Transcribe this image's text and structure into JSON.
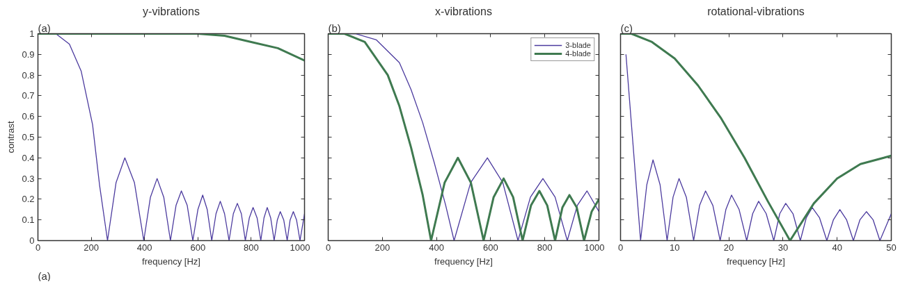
{
  "chart_data": [
    {
      "type": "line",
      "title": "y-vibrations",
      "xlabel": "frequency [Hz]",
      "ylabel": "contrast",
      "annotations": [
        "(a)",
        "(a)"
      ],
      "xlim": [
        0,
        1000
      ],
      "xticks": [
        0,
        200,
        400,
        600,
        800,
        1000
      ],
      "ylim": [
        0,
        1
      ],
      "yticks": [
        0,
        0.1,
        0.2,
        0.3,
        0.4,
        0.5,
        0.6,
        0.7,
        0.8,
        0.9,
        1
      ],
      "grid": false,
      "legend": false,
      "series": [
        {
          "color": "#4b3a9e",
          "x": [
            0,
            67,
            118,
            162,
            205,
            231,
            261,
            293,
            326,
            362,
            397,
            422,
            447,
            472,
            497,
            518,
            538,
            560,
            581,
            600,
            618,
            635,
            652,
            668,
            684,
            700,
            717,
            733,
            748,
            763,
            778,
            793,
            807,
            822,
            836,
            848,
            860,
            873,
            886,
            898,
            909,
            922,
            935,
            946,
            958,
            970,
            983,
            1000
          ],
          "values": [
            1,
            1,
            0.95,
            0.82,
            0.56,
            0.27,
            0,
            0.28,
            0.4,
            0.28,
            0,
            0.21,
            0.3,
            0.21,
            0,
            0.17,
            0.24,
            0.17,
            0,
            0.15,
            0.22,
            0.15,
            0,
            0.13,
            0.19,
            0.13,
            0,
            0.13,
            0.18,
            0.13,
            0,
            0.11,
            0.16,
            0.11,
            0,
            0.11,
            0.16,
            0.11,
            0,
            0.1,
            0.14,
            0.1,
            0,
            0.1,
            0.14,
            0.1,
            0,
            0.13
          ]
        },
        {
          "color": "#3f7a50",
          "x": [
            0,
            200,
            400,
            600,
            700,
            800,
            900,
            1000
          ],
          "values": [
            1,
            1,
            1,
            1,
            0.99,
            0.96,
            0.93,
            0.87
          ]
        }
      ]
    },
    {
      "type": "line",
      "title": "x-vibrations",
      "xlabel": "frequency [Hz]",
      "annotations": [
        "(b)"
      ],
      "xlim": [
        0,
        1000
      ],
      "xticks": [
        0,
        200,
        400,
        600,
        800,
        1000
      ],
      "ylim": [
        0,
        1
      ],
      "yticks": [
        0,
        0.1,
        0.2,
        0.3,
        0.4,
        0.5,
        0.6,
        0.7,
        0.8,
        0.9,
        1
      ],
      "tick_labels": "x",
      "grid": false,
      "legend": "top right",
      "series": [
        {
          "name": "3-blade",
          "color": "#4b3a9e",
          "x": [
            0,
            100,
            178,
            263,
            306,
            349,
            391,
            434,
            465,
            526,
            588,
            645,
            701,
            747,
            793,
            838,
            883,
            920,
            956,
            1000
          ],
          "values": [
            1,
            1,
            0.97,
            0.86,
            0.73,
            0.57,
            0.38,
            0.17,
            0,
            0.28,
            0.4,
            0.28,
            0,
            0.21,
            0.3,
            0.21,
            0,
            0.17,
            0.24,
            0.14
          ]
        },
        {
          "name": "4-blade",
          "color": "#3f7a50",
          "x": [
            0,
            60,
            135,
            220,
            263,
            306,
            349,
            380,
            430,
            479,
            527,
            574,
            611,
            648,
            683,
            718,
            749,
            780,
            809,
            838,
            865,
            891,
            918,
            945,
            973,
            1000
          ],
          "values": [
            1,
            1,
            0.96,
            0.8,
            0.65,
            0.45,
            0.22,
            0,
            0.28,
            0.4,
            0.28,
            0,
            0.21,
            0.3,
            0.21,
            0,
            0.17,
            0.24,
            0.17,
            0,
            0.16,
            0.22,
            0.16,
            0,
            0.14,
            0.2
          ]
        }
      ]
    },
    {
      "type": "line",
      "title": "rotational-vibrations",
      "xlabel": "frequency [Hz]",
      "annotations": [
        "(c)"
      ],
      "xlim": [
        0,
        50
      ],
      "xticks": [
        0,
        10,
        20,
        30,
        40,
        50
      ],
      "ylim": [
        0,
        1
      ],
      "yticks": [
        0,
        0.1,
        0.2,
        0.3,
        0.4,
        0.5,
        0.6,
        0.7,
        0.8,
        0.9,
        1
      ],
      "tick_labels": "x",
      "grid": false,
      "legend": false,
      "series": [
        {
          "color": "#4b3a9e",
          "x": [
            1.0,
            3.7,
            4.85,
            6.0,
            7.3,
            8.6,
            9.7,
            10.8,
            12.15,
            13.5,
            14.6,
            15.7,
            17.05,
            18.4,
            19.45,
            20.5,
            21.9,
            23.3,
            24.4,
            25.5,
            26.9,
            28.3,
            29.4,
            30.5,
            31.85,
            33.2,
            34.3,
            35.4,
            36.75,
            38.1,
            39.3,
            40.5,
            41.75,
            43.0,
            44.2,
            45.4,
            46.65,
            47.9,
            50
          ],
          "values": [
            0.9,
            0,
            0.27,
            0.39,
            0.27,
            0,
            0.21,
            0.3,
            0.21,
            0,
            0.17,
            0.24,
            0.17,
            0,
            0.15,
            0.22,
            0.15,
            0,
            0.13,
            0.19,
            0.13,
            0,
            0.13,
            0.18,
            0.13,
            0,
            0.11,
            0.16,
            0.11,
            0,
            0.1,
            0.15,
            0.1,
            0,
            0.1,
            0.14,
            0.1,
            0,
            0.13
          ]
        },
        {
          "color": "#3f7a50",
          "x": [
            0,
            2,
            5.8,
            10,
            14.3,
            18.6,
            22.9,
            27.2,
            31.3,
            35.7,
            40,
            44.3,
            50
          ],
          "values": [
            1,
            1,
            0.96,
            0.88,
            0.75,
            0.59,
            0.4,
            0.19,
            0,
            0.18,
            0.3,
            0.37,
            0.41
          ]
        }
      ]
    }
  ]
}
